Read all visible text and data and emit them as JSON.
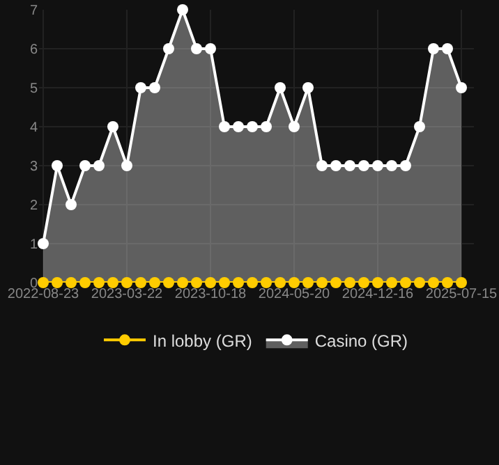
{
  "chart_data": {
    "type": "area",
    "categories": [
      "2022-08-23",
      null,
      null,
      null,
      null,
      null,
      "2023-03-22",
      null,
      null,
      null,
      null,
      null,
      "2023-10-18",
      null,
      null,
      null,
      null,
      null,
      "2024-05-20",
      null,
      null,
      null,
      null,
      null,
      "2024-12-16",
      null,
      null,
      null,
      null,
      null,
      "2025-07-15"
    ],
    "series": [
      {
        "name": "In lobby (GR)",
        "type": "line",
        "color": "#ffcc00",
        "values": [
          0,
          0,
          0,
          0,
          0,
          0,
          0,
          0,
          0,
          0,
          0,
          0,
          0,
          0,
          0,
          0,
          0,
          0,
          0,
          0,
          0,
          0,
          0,
          0,
          0,
          0,
          0,
          0,
          0,
          0,
          0
        ]
      },
      {
        "name": "Casino (GR)",
        "color": "#ffffff",
        "values": [
          1,
          3,
          2,
          3,
          3,
          4,
          3,
          5,
          5,
          6,
          7,
          6,
          6,
          4,
          4,
          4,
          4,
          5,
          4,
          5,
          3,
          3,
          3,
          3,
          3,
          3,
          3,
          4,
          6,
          6,
          5
        ]
      }
    ],
    "ylim": [
      0,
      7
    ],
    "yticks": [
      0,
      1,
      2,
      3,
      4,
      5,
      6,
      7
    ],
    "grid": true,
    "legend": "bottom",
    "marker": "circle",
    "line_style": "solid"
  }
}
